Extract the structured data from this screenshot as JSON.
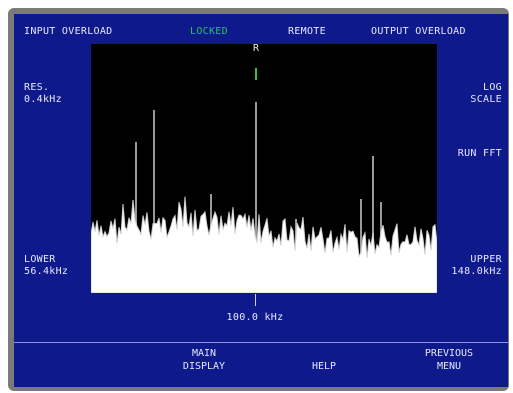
{
  "status_bar": {
    "input_overload": "INPUT OVERLOAD",
    "locked": "LOCKED",
    "remote": "REMOTE",
    "output_overload": "OUTPUT OVERLOAD"
  },
  "left_panel": {
    "res_label": "RES.",
    "res_value": "0.4kHz",
    "lower_label": "LOWER",
    "lower_value": "56.4kHz"
  },
  "right_panel": {
    "scale_line1": "LOG",
    "scale_line2": "SCALE",
    "run_fft": "RUN FFT",
    "upper_label": "UPPER",
    "upper_value": "148.0kHz"
  },
  "reference_marker": {
    "label": "R"
  },
  "center_frequency": "100.0 kHz",
  "softkeys": {
    "main_display_line1": "MAIN",
    "main_display_line2": "DISPLAY",
    "help": "HELP",
    "previous_menu_line1": "PREVIOUS",
    "previous_menu_line2": "MENU"
  },
  "colors": {
    "screen_bg": "#0e1a8c",
    "plot_bg": "#000000",
    "text": "#e8e8ff",
    "locked": "#2ec24a",
    "spectrum_fill": "#ffffff",
    "spike": "#9a9a9a"
  }
}
